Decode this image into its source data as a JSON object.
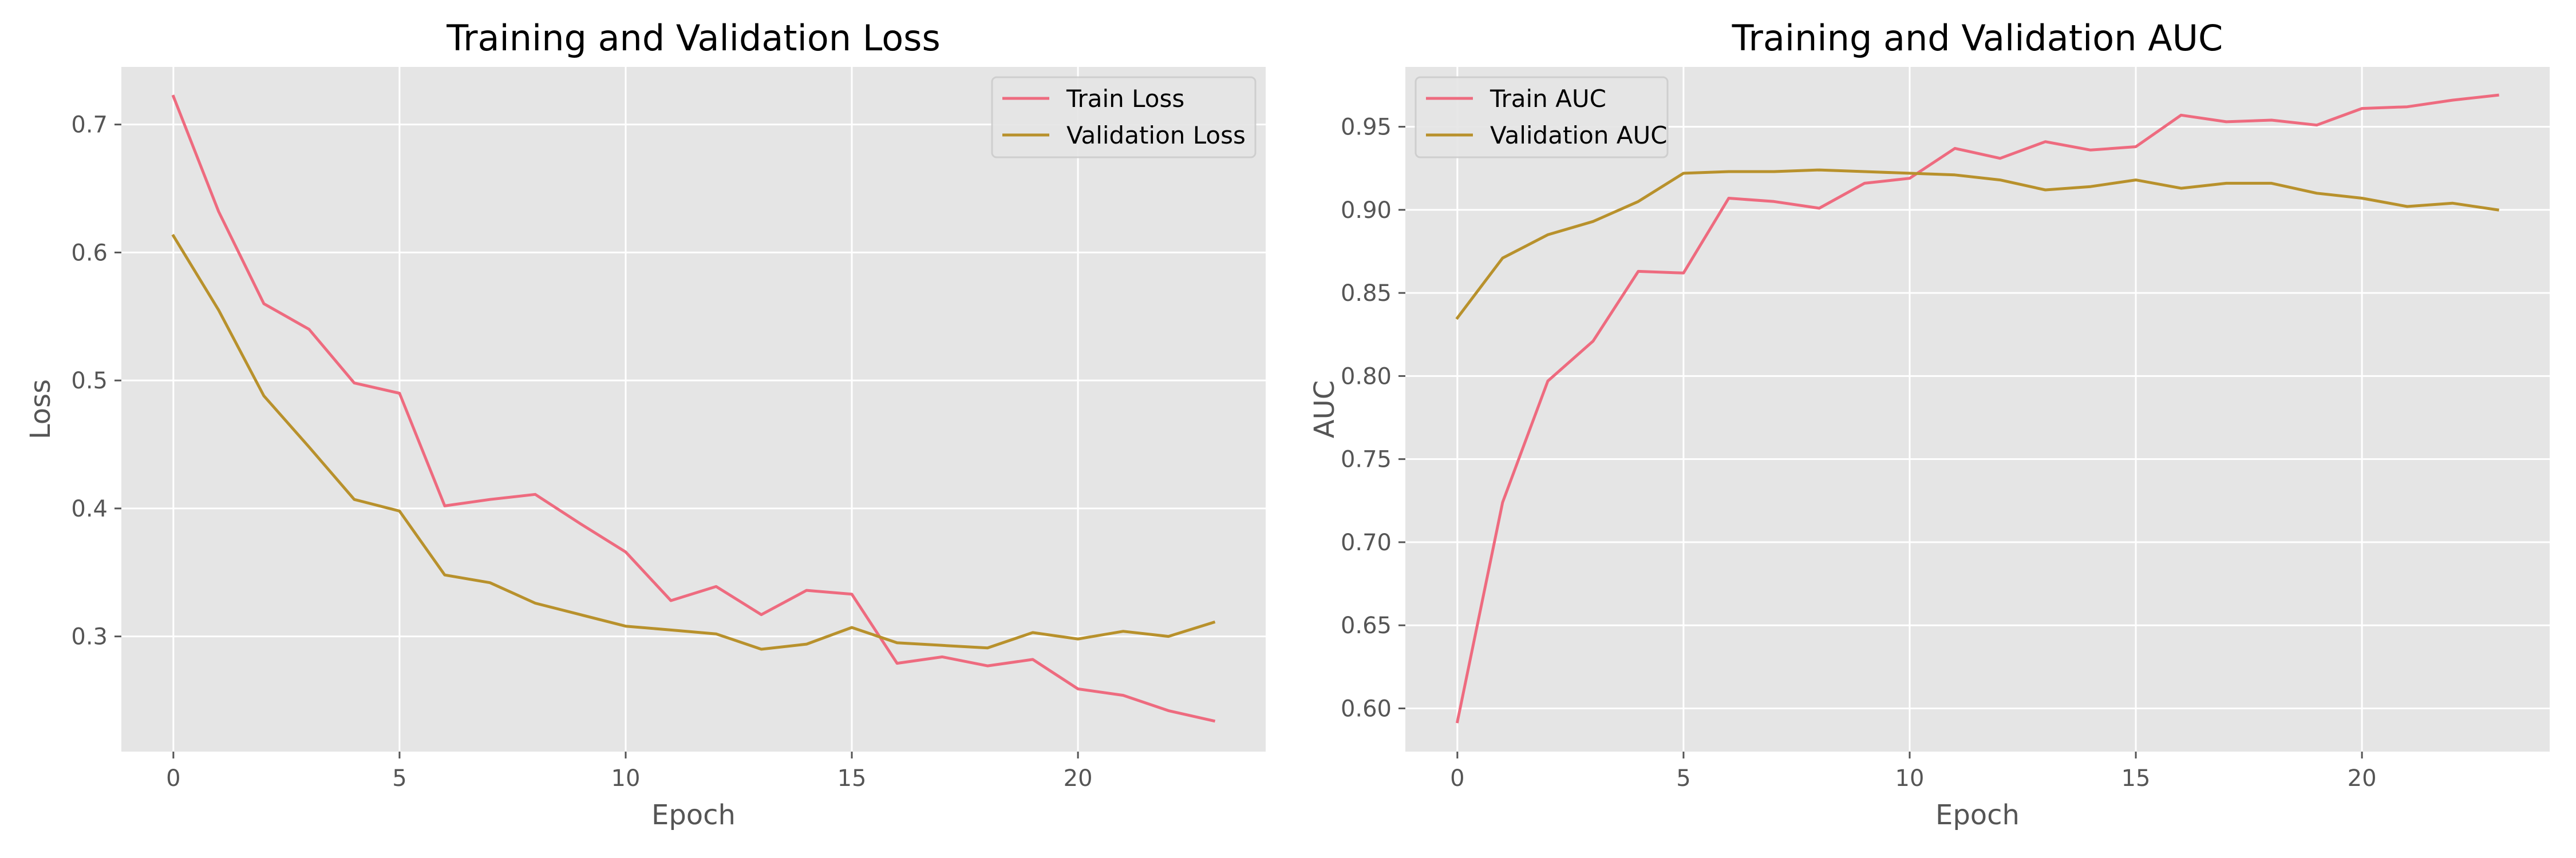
{
  "chart_data": [
    {
      "type": "line",
      "title": "Training and Validation Loss",
      "xlabel": "Epoch",
      "ylabel": "Loss",
      "x": [
        0,
        1,
        2,
        3,
        4,
        5,
        6,
        7,
        8,
        9,
        10,
        11,
        12,
        13,
        14,
        15,
        16,
        17,
        18,
        19,
        20,
        21,
        22,
        23
      ],
      "xlim": [
        -1.15,
        24.15
      ],
      "ylim": [
        0.21,
        0.745
      ],
      "xticks": [
        0,
        5,
        10,
        15,
        20
      ],
      "yticks": [
        0.3,
        0.4,
        0.5,
        0.6,
        0.7
      ],
      "grid": true,
      "legend_position": "top-right",
      "series": [
        {
          "name": "Train Loss",
          "color": "#ee6b7f",
          "values": [
            0.722,
            0.632,
            0.56,
            0.54,
            0.498,
            0.49,
            0.402,
            0.407,
            0.411,
            0.388,
            0.366,
            0.328,
            0.339,
            0.317,
            0.336,
            0.333,
            0.279,
            0.284,
            0.277,
            0.282,
            0.259,
            0.254,
            0.242,
            0.234
          ]
        },
        {
          "name": "Validation Loss",
          "color": "#b8912c",
          "values": [
            0.613,
            0.555,
            0.488,
            0.448,
            0.407,
            0.398,
            0.348,
            0.342,
            0.326,
            0.317,
            0.308,
            0.305,
            0.302,
            0.29,
            0.294,
            0.307,
            0.295,
            0.293,
            0.291,
            0.303,
            0.298,
            0.304,
            0.3,
            0.311
          ]
        }
      ]
    },
    {
      "type": "line",
      "title": "Training and Validation AUC",
      "xlabel": "Epoch",
      "ylabel": "AUC",
      "x": [
        0,
        1,
        2,
        3,
        4,
        5,
        6,
        7,
        8,
        9,
        10,
        11,
        12,
        13,
        14,
        15,
        16,
        17,
        18,
        19,
        20,
        21,
        22,
        23
      ],
      "xlim": [
        -1.15,
        24.15
      ],
      "ylim": [
        0.574,
        0.986
      ],
      "xticks": [
        0,
        5,
        10,
        15,
        20
      ],
      "yticks": [
        0.6,
        0.65,
        0.7,
        0.75,
        0.8,
        0.85,
        0.9,
        0.95
      ],
      "grid": true,
      "legend_position": "top-left",
      "series": [
        {
          "name": "Train AUC",
          "color": "#ee6b7f",
          "values": [
            0.592,
            0.724,
            0.797,
            0.821,
            0.863,
            0.862,
            0.907,
            0.905,
            0.901,
            0.916,
            0.919,
            0.937,
            0.931,
            0.941,
            0.936,
            0.938,
            0.957,
            0.953,
            0.954,
            0.951,
            0.961,
            0.962,
            0.966,
            0.969
          ]
        },
        {
          "name": "Validation AUC",
          "color": "#b8912c",
          "values": [
            0.835,
            0.871,
            0.885,
            0.893,
            0.905,
            0.922,
            0.923,
            0.923,
            0.924,
            0.923,
            0.922,
            0.921,
            0.918,
            0.912,
            0.914,
            0.918,
            0.913,
            0.916,
            0.916,
            0.91,
            0.907,
            0.902,
            0.904,
            0.9
          ]
        }
      ]
    }
  ]
}
